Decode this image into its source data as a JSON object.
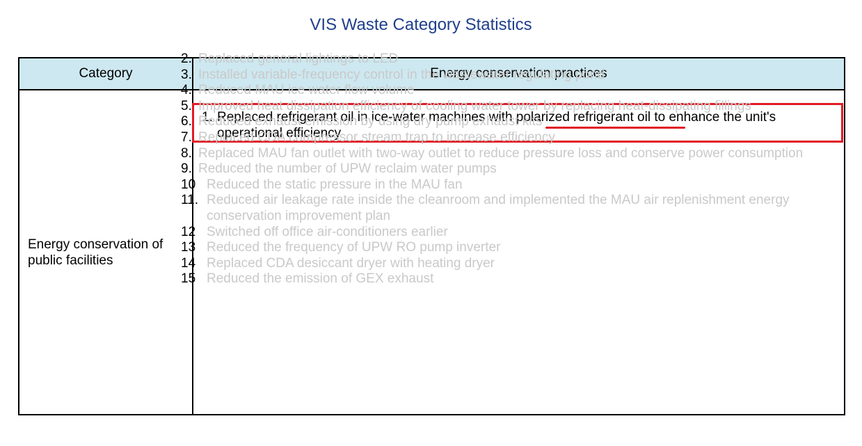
{
  "title": "VIS Waste Category Statistics",
  "table": {
    "headers": {
      "category": "Category",
      "practices": "Energy conservation practices"
    },
    "category": "Energy conservation of public facilities",
    "highlight_color": "#e01b24",
    "header_bg": "#cde8f0",
    "items": [
      {
        "num": "1.",
        "text": "Replaced refrigerant oil in ice-water machines with polarized refrigerant oil to enhance the unit's operational efficiency",
        "underlined": "polarized refrigerant oil"
      },
      {
        "num": "2.",
        "text": "Replaced general lightings to LED"
      },
      {
        "num": "3.",
        "text": "Installed variable-frequency control in the wastewater regulating pond"
      },
      {
        "num": "4.",
        "text": "Reduced MAU ice water flow volume"
      },
      {
        "num": "5.",
        "text": "Improved heat dissipation efficiency of cooling water tower by replacing heat-dissipating fillings"
      },
      {
        "num": "6.",
        "text": "Reduced exhaust emission by using dry pump exhaust kits"
      },
      {
        "num": "7.",
        "text": "Replaced CDA compressor stream trap to increase efficiency"
      },
      {
        "num": "8.",
        "text": "Replaced MAU fan outlet with two-way outlet to reduce pressure loss and conserve power consumption"
      },
      {
        "num": "9.",
        "text": "Reduced the number of UPW reclaim water pumps"
      },
      {
        "num": "10",
        "text": "Reduced the static pressure in the MAU fan"
      },
      {
        "num": "11.",
        "text": "Reduced air leakage rate inside the cleanroom and implemented the MAU air replenishment energy conservation improvement plan"
      },
      {
        "num": "12",
        "text": "Switched off office air-conditioners earlier"
      },
      {
        "num": "13",
        "text": "Reduced the frequency of UPW RO pump inverter"
      },
      {
        "num": "14",
        "text": "Replaced CDA desiccant dryer with heating dryer"
      },
      {
        "num": "15",
        "text": "Reduced the emission of GEX exhaust"
      }
    ]
  }
}
